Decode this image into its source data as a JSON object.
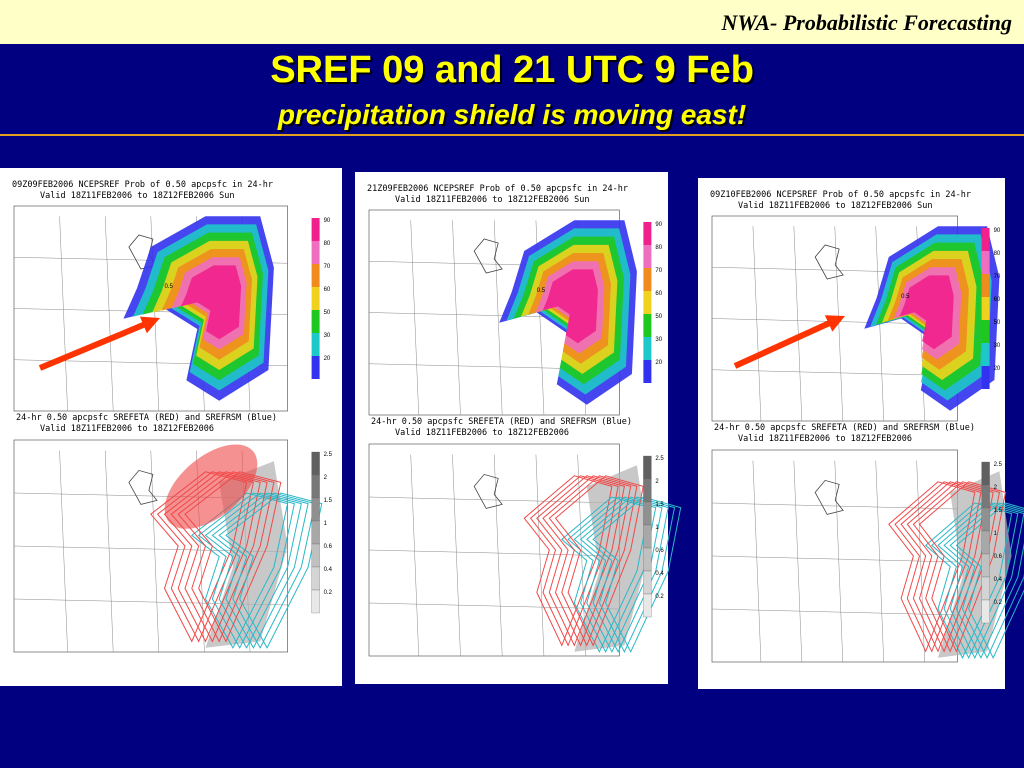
{
  "header": {
    "brand": "NWA- Probabilistic Forecasting"
  },
  "title": "SREF 09 and 21 UTC 9 Feb",
  "subtitle": "precipitation shield is moving east!",
  "prob_scale": [
    90,
    80,
    70,
    60,
    50,
    30,
    20
  ],
  "spread_scale": [
    2.5,
    2,
    1.5,
    1,
    0.6,
    0.4,
    0.2
  ],
  "panels": [
    {
      "top_title": "09Z09FEB2006 NCEPSREF Prob of 0.50 apcpsfc in 24-hr",
      "top_valid": "Valid 18Z11FEB2006 to 18Z12FEB2006 Sun",
      "contour_label": "0.5",
      "bottom_title": "24-hr 0.50 apcpsfc SREFETA (RED) and SREFRSM (Blue)",
      "bottom_valid": "Valid 18Z11FEB2006 to 18Z12FEB2006"
    },
    {
      "top_title": "21Z09FEB2006 NCEPSREF Prob of 0.50 apcpsfc in 24-hr",
      "top_valid": "Valid 18Z11FEB2006 to 18Z12FEB2006 Sun",
      "contour_label": "0.5",
      "bottom_title": "24-hr 0.50 apcpsfc SREFETA (RED) and SREFRSM (Blue)",
      "bottom_valid": "Valid 18Z11FEB2006 to 18Z12FEB2006"
    },
    {
      "top_title": "09Z10FEB2006 NCEPSREF Prob of 0.50 apcpsfc in 24-hr",
      "top_valid": "Valid 18Z11FEB2006 to 18Z12FEB2006 Sun",
      "contour_label": "0.5",
      "bottom_title": "24-hr 0.50 apcpsfc SREFETA (RED) and SREFRSM (Blue)",
      "bottom_valid": "Valid 18Z11FEB2006 to 18Z12FEB2006"
    }
  ]
}
